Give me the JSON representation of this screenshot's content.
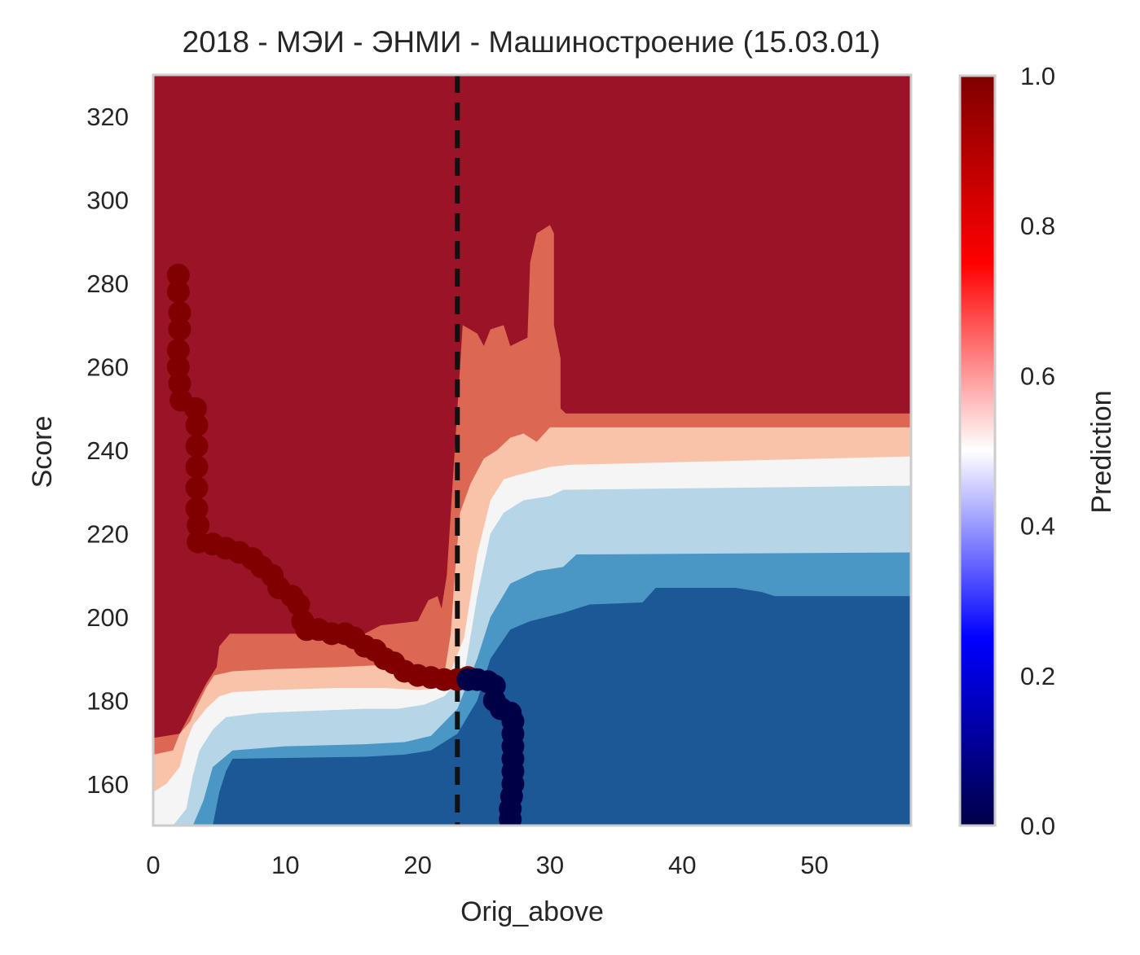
{
  "chart_data": {
    "type": "heatmap",
    "title": "2018 - МЭИ - ЭНМИ - Машиностроение (15.03.01)",
    "xlabel": "Orig_above",
    "ylabel": "Score",
    "xlim": [
      0,
      57.3
    ],
    "ylim": [
      150,
      330
    ],
    "xticks": [
      0,
      10,
      20,
      30,
      40,
      50
    ],
    "yticks": [
      160,
      180,
      200,
      220,
      240,
      260,
      280,
      300,
      320
    ],
    "grid": false,
    "colorbar": {
      "label": "Prediction",
      "range": [
        0,
        1
      ],
      "ticks": [
        "0.0",
        "0.2",
        "0.4",
        "0.6",
        "0.8",
        "1.0"
      ],
      "colormap": "seismic"
    },
    "threshold_line": {
      "x": 23,
      "style": "dashed",
      "color": "#111111"
    },
    "contour_levels": [
      {
        "level": "> 0.9",
        "color": "#9b1327"
      },
      {
        "level": "0.8 - 0.9",
        "color": "#dc6853"
      },
      {
        "level": "0.6 - 0.8",
        "color": "#f8c3a9"
      },
      {
        "level": "0.5 - 0.6",
        "color": "#f5f5f5"
      },
      {
        "level": "0.3 - 0.5",
        "color": "#b6d5e7"
      },
      {
        "level": "0.1 - 0.3",
        "color": "#4a97c5"
      },
      {
        "level": "< 0.1",
        "color": "#1c5796"
      }
    ],
    "series": [
      {
        "prediction": 1,
        "color": "#800000",
        "points": [
          [
            1.9,
            282
          ],
          [
            1.9,
            278
          ],
          [
            2.0,
            273
          ],
          [
            2.0,
            269
          ],
          [
            1.9,
            264
          ],
          [
            1.9,
            260
          ],
          [
            2.0,
            256
          ],
          [
            2.1,
            252
          ],
          [
            3.2,
            250
          ],
          [
            3.3,
            246
          ],
          [
            3.3,
            241
          ],
          [
            3.3,
            236
          ],
          [
            3.3,
            231
          ],
          [
            3.3,
            226
          ],
          [
            3.4,
            222
          ],
          [
            3.4,
            218
          ],
          [
            4.5,
            217.5
          ],
          [
            5.5,
            216.5
          ],
          [
            6.5,
            215.5
          ],
          [
            7.5,
            214
          ],
          [
            8.2,
            212
          ],
          [
            9.0,
            210
          ],
          [
            9.5,
            207
          ],
          [
            10.5,
            205
          ],
          [
            11.0,
            203
          ],
          [
            11.3,
            199
          ],
          [
            11.6,
            197
          ],
          [
            12.5,
            197
          ],
          [
            13.5,
            196
          ],
          [
            14.5,
            196
          ],
          [
            15.2,
            195
          ],
          [
            16.0,
            193
          ],
          [
            16.8,
            192
          ],
          [
            17.5,
            190
          ],
          [
            18.2,
            189
          ],
          [
            19.0,
            187
          ],
          [
            20.0,
            186
          ],
          [
            21.0,
            185.5
          ],
          [
            22.0,
            185
          ],
          [
            23.0,
            185
          ],
          [
            23.8,
            185.5
          ]
        ]
      },
      {
        "prediction": 0,
        "color": "#000047",
        "points": [
          [
            23.8,
            185
          ],
          [
            24.5,
            185
          ],
          [
            25.3,
            184.5
          ],
          [
            25.8,
            183.5
          ],
          [
            25.8,
            180
          ],
          [
            26.3,
            178
          ],
          [
            27.0,
            177
          ],
          [
            27.2,
            175
          ],
          [
            27.2,
            172
          ],
          [
            27.2,
            169
          ],
          [
            27.2,
            166
          ],
          [
            27.2,
            163
          ],
          [
            27.2,
            160
          ],
          [
            27.1,
            157
          ],
          [
            27.0,
            154
          ],
          [
            27.0,
            151.5
          ]
        ]
      }
    ]
  }
}
